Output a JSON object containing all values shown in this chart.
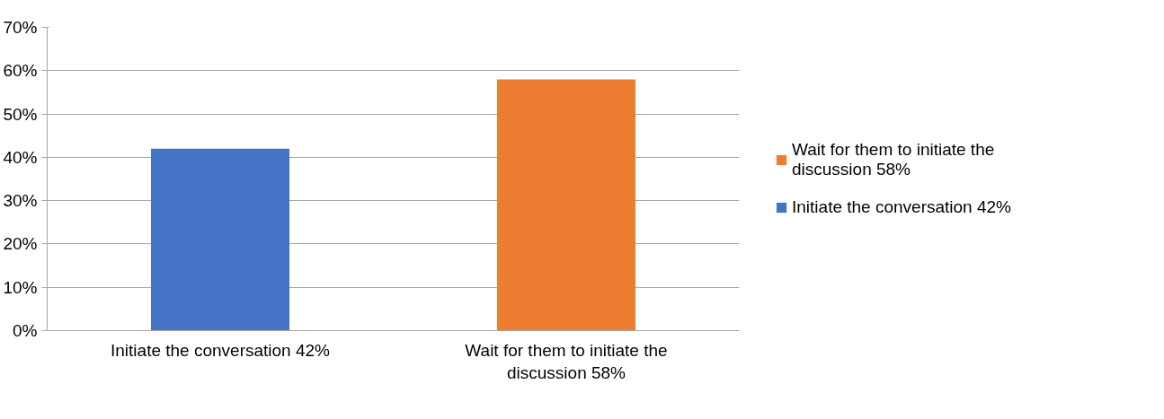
{
  "chart_data": {
    "type": "bar",
    "categories": [
      "Initiate the conversation 42%",
      "Wait for them to initiate the discussion 58%"
    ],
    "series": [
      {
        "name": "Wait for them to initiate the discussion 58%",
        "color": "#ed7d31",
        "values": [
          null,
          58
        ]
      },
      {
        "name": "Initiate the conversation 42%",
        "color": "#4472c4",
        "values": [
          42,
          null
        ]
      }
    ],
    "ylim": [
      0,
      70
    ],
    "yticks": [
      {
        "value": 0,
        "label": "0%"
      },
      {
        "value": 10,
        "label": "10%"
      },
      {
        "value": 20,
        "label": "20%"
      },
      {
        "value": 30,
        "label": "30%"
      },
      {
        "value": 40,
        "label": "40%"
      },
      {
        "value": 50,
        "label": "50%"
      },
      {
        "value": 60,
        "label": "60%"
      },
      {
        "value": 70,
        "label": "70%"
      }
    ],
    "grid": "y",
    "legend": "right"
  }
}
